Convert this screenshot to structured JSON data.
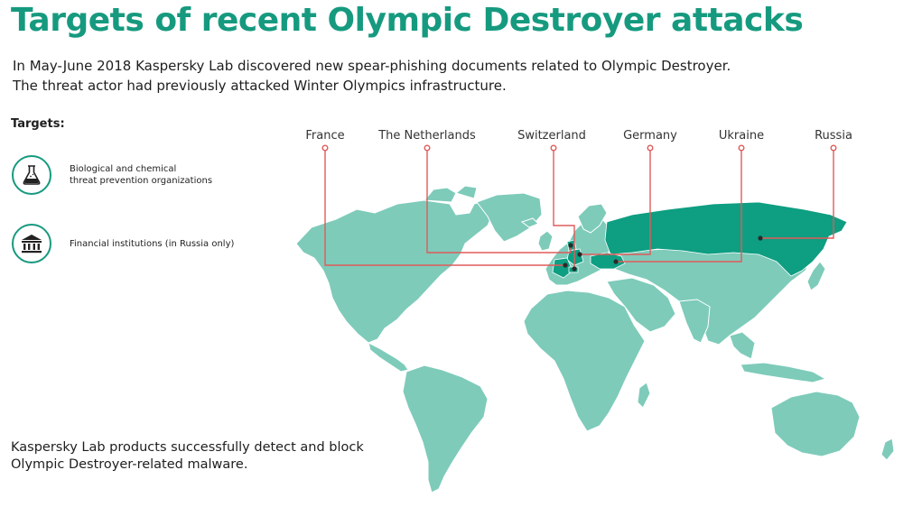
{
  "title": "Targets of recent Olympic Destroyer attacks",
  "intro": {
    "line1": "In May-June 2018 Kaspersky Lab discovered new spear-phishing documents related to Olympic Destroyer.",
    "line2": "The threat actor had previously attacked Winter Olympics infrastructure."
  },
  "targets": {
    "heading": "Targets:",
    "items": [
      {
        "icon": "flask-icon",
        "line1": "Biological and chemical",
        "line2": "threat prevention organizations"
      },
      {
        "icon": "bank-icon",
        "line1": "Financial institutions (in Russia only)",
        "line2": ""
      }
    ]
  },
  "map": {
    "countries": [
      "France",
      "The Netherlands",
      "Switzerland",
      "Germany",
      "Ukraine",
      "Russia"
    ]
  },
  "footer": {
    "line1": "Kaspersky Lab products successfully detect and block",
    "line2": "Olympic Destroyer-related malware."
  },
  "colors": {
    "accent": "#169a7f",
    "land": "#7ecbba",
    "highlight": "#0e9e82",
    "connector": "#e05b5b"
  }
}
